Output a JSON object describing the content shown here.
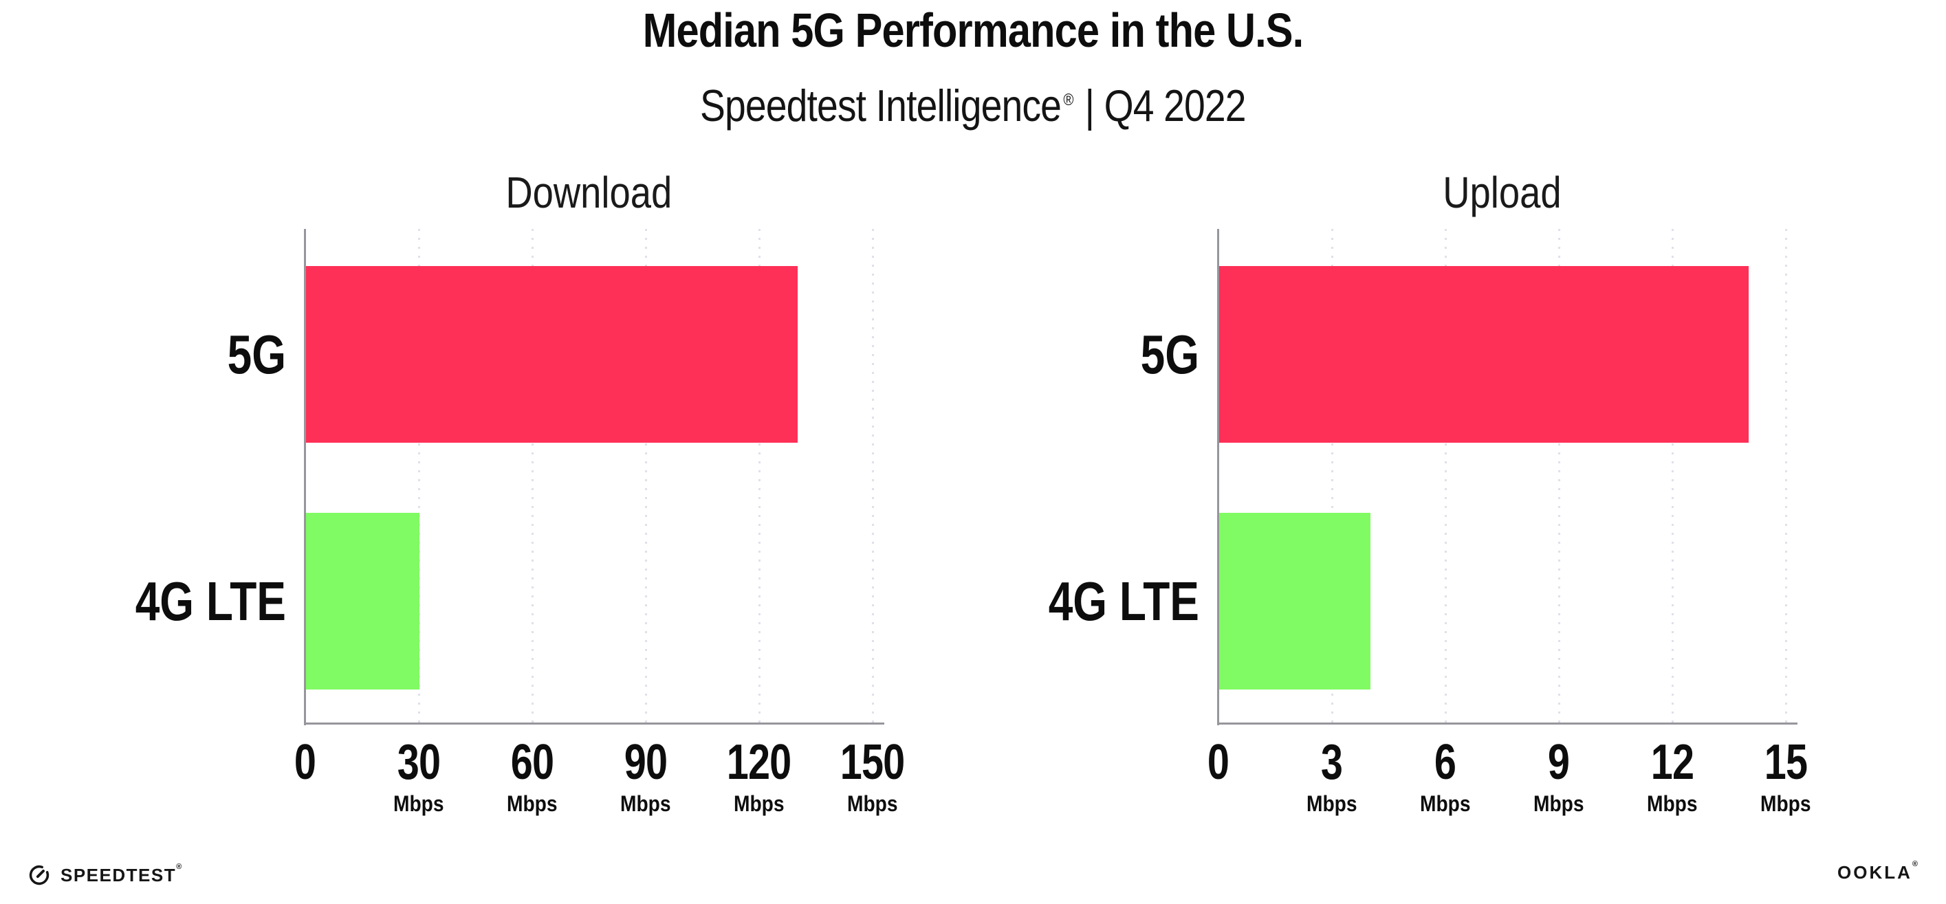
{
  "header": {
    "title": "Median 5G Performance in the U.S.",
    "subtitle_main": "Speedtest Intelligence",
    "subtitle_reg": "®",
    "subtitle_rest": "| Q4 2022"
  },
  "colors": {
    "bar_5g": "#ff3057",
    "bar_4g_lte": "#80fb63",
    "axis": "#96969c",
    "gridline": "#e0e0ea",
    "text": "#0d0d0d"
  },
  "chart_data": [
    {
      "type": "bar",
      "orientation": "horizontal",
      "title": "Download",
      "categories": [
        "5G",
        "4G LTE"
      ],
      "values": [
        130,
        30
      ],
      "unit": "Mbps",
      "xticks": [
        0,
        30,
        60,
        90,
        120,
        150
      ],
      "xlim": [
        0,
        150
      ],
      "bar_colors": [
        "#ff3057",
        "#80fb63"
      ],
      "grid": "dotted-vertical-gridlines",
      "legend": "none"
    },
    {
      "type": "bar",
      "orientation": "horizontal",
      "title": "Upload",
      "categories": [
        "5G",
        "4G LTE"
      ],
      "values": [
        14,
        4
      ],
      "unit": "Mbps",
      "xticks": [
        0,
        3,
        6,
        9,
        12,
        15
      ],
      "xlim": [
        0,
        15
      ],
      "bar_colors": [
        "#ff3057",
        "#80fb63"
      ],
      "grid": "dotted-vertical-gridlines",
      "legend": "none"
    }
  ],
  "footer": {
    "speedtest_label": "SPEEDTEST",
    "speedtest_mark": "®",
    "ookla_label": "OOKLA",
    "ookla_mark": "®"
  }
}
